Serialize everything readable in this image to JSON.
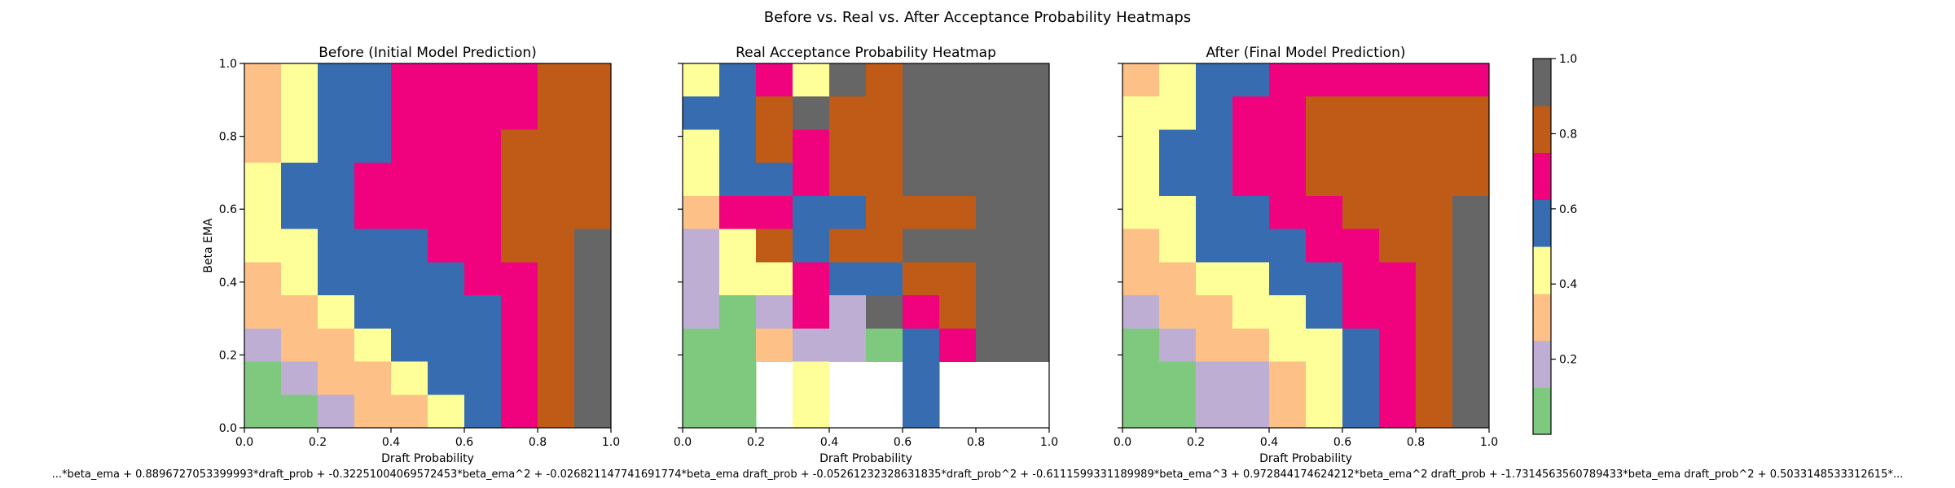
{
  "figure": {
    "suptitle": "Before vs. Real vs. After Acceptance Probability Heatmaps",
    "formula": "...*beta_ema + 0.8896727053399993*draft_prob + -0.32251004069572453*beta_ema^2 + -0.026821147741691774*beta_ema draft_prob + -0.05261232328631835*draft_prob^2 + -0.6111599331189989*beta_ema^3 + 0.972844174624212*beta_ema^2 draft_prob + -1.7314563560789433*beta_ema draft_prob^2 + 0.5033148533312615*..."
  },
  "colorbar": {
    "colors": [
      "#7fc97f",
      "#beaed4",
      "#fdc086",
      "#ffff99",
      "#386cb0",
      "#f0027f",
      "#bf5b17",
      "#666666"
    ],
    "range": [
      0,
      1
    ],
    "ticks": [
      "0.2",
      "0.4",
      "0.6",
      "0.8",
      "1.0"
    ]
  },
  "chart_data": [
    {
      "type": "heatmap",
      "title": "Before (Initial Model Prediction)",
      "xlabel": "Draft Probability",
      "ylabel": "Beta EMA",
      "xlim": [
        0,
        1
      ],
      "ylim": [
        0,
        1
      ],
      "xticks": [
        "0.0",
        "0.2",
        "0.4",
        "0.6",
        "0.8",
        "1.0"
      ],
      "yticks": [
        "0.0",
        "0.2",
        "0.4",
        "0.6",
        "0.8",
        "1.0"
      ],
      "grid": false,
      "rows_top_to_bottom": [
        [
          2,
          3,
          4,
          4,
          5,
          5,
          5,
          5,
          6,
          6
        ],
        [
          2,
          3,
          4,
          4,
          5,
          5,
          5,
          5,
          6,
          6
        ],
        [
          2,
          3,
          4,
          4,
          5,
          5,
          5,
          6,
          6,
          6
        ],
        [
          3,
          4,
          4,
          5,
          5,
          5,
          5,
          6,
          6,
          6
        ],
        [
          3,
          4,
          4,
          5,
          5,
          5,
          5,
          6,
          6,
          6
        ],
        [
          3,
          3,
          4,
          4,
          4,
          5,
          5,
          6,
          6,
          7
        ],
        [
          2,
          3,
          4,
          4,
          4,
          4,
          5,
          5,
          6,
          7
        ],
        [
          2,
          2,
          3,
          4,
          4,
          4,
          4,
          5,
          6,
          7
        ],
        [
          1,
          2,
          2,
          3,
          4,
          4,
          4,
          5,
          6,
          7
        ],
        [
          0,
          1,
          2,
          2,
          3,
          4,
          4,
          5,
          6,
          7
        ],
        [
          0,
          0,
          1,
          2,
          2,
          3,
          4,
          5,
          6,
          7
        ]
      ]
    },
    {
      "type": "heatmap",
      "title": "Real Acceptance Probability Heatmap",
      "xlabel": "Draft Probability",
      "ylabel": "",
      "xlim": [
        0,
        1
      ],
      "ylim": [
        0,
        1
      ],
      "xticks": [
        "0.0",
        "0.2",
        "0.4",
        "0.6",
        "0.8",
        "1.0"
      ],
      "yticks": [
        "",
        "",
        "",
        "",
        "",
        ""
      ],
      "grid": false,
      "rows_top_to_bottom": [
        [
          3,
          4,
          5,
          3,
          7,
          6,
          7,
          7,
          7,
          7
        ],
        [
          4,
          4,
          6,
          7,
          6,
          6,
          7,
          7,
          7,
          7
        ],
        [
          3,
          4,
          6,
          5,
          6,
          6,
          7,
          7,
          7,
          7
        ],
        [
          3,
          4,
          4,
          5,
          6,
          6,
          7,
          7,
          7,
          7
        ],
        [
          2,
          5,
          5,
          4,
          4,
          6,
          6,
          6,
          7,
          7
        ],
        [
          1,
          3,
          6,
          4,
          6,
          6,
          7,
          7,
          7,
          7
        ],
        [
          1,
          3,
          3,
          5,
          4,
          4,
          6,
          6,
          7,
          7
        ],
        [
          1,
          0,
          1,
          5,
          1,
          7,
          5,
          6,
          7,
          7
        ],
        [
          0,
          0,
          2,
          1,
          1,
          0,
          4,
          5,
          7,
          7
        ],
        [
          0,
          0,
          null,
          3,
          null,
          null,
          4,
          null,
          null,
          null
        ],
        [
          0,
          0,
          null,
          3,
          null,
          null,
          4,
          null,
          null,
          null
        ]
      ]
    },
    {
      "type": "heatmap",
      "title": "After (Final Model Prediction)",
      "xlabel": "Draft Probability",
      "ylabel": "",
      "xlim": [
        0,
        1
      ],
      "ylim": [
        0,
        1
      ],
      "xticks": [
        "0.0",
        "0.2",
        "0.4",
        "0.6",
        "0.8",
        "1.0"
      ],
      "yticks": [
        "",
        "",
        "",
        "",
        "",
        ""
      ],
      "grid": false,
      "rows_top_to_bottom": [
        [
          2,
          3,
          4,
          4,
          5,
          5,
          5,
          5,
          5,
          5
        ],
        [
          3,
          3,
          4,
          5,
          5,
          6,
          6,
          6,
          6,
          6
        ],
        [
          3,
          4,
          4,
          5,
          5,
          6,
          6,
          6,
          6,
          6
        ],
        [
          3,
          4,
          4,
          5,
          5,
          6,
          6,
          6,
          6,
          6
        ],
        [
          3,
          3,
          4,
          4,
          5,
          5,
          6,
          6,
          6,
          7
        ],
        [
          2,
          3,
          4,
          4,
          4,
          5,
          5,
          6,
          6,
          7
        ],
        [
          2,
          2,
          3,
          3,
          4,
          4,
          5,
          5,
          6,
          7
        ],
        [
          1,
          2,
          2,
          3,
          3,
          4,
          5,
          5,
          6,
          7
        ],
        [
          0,
          1,
          2,
          2,
          3,
          3,
          4,
          5,
          6,
          7
        ],
        [
          0,
          0,
          1,
          1,
          2,
          3,
          4,
          5,
          6,
          7
        ],
        [
          0,
          0,
          1,
          1,
          2,
          3,
          4,
          5,
          6,
          7
        ]
      ]
    }
  ]
}
